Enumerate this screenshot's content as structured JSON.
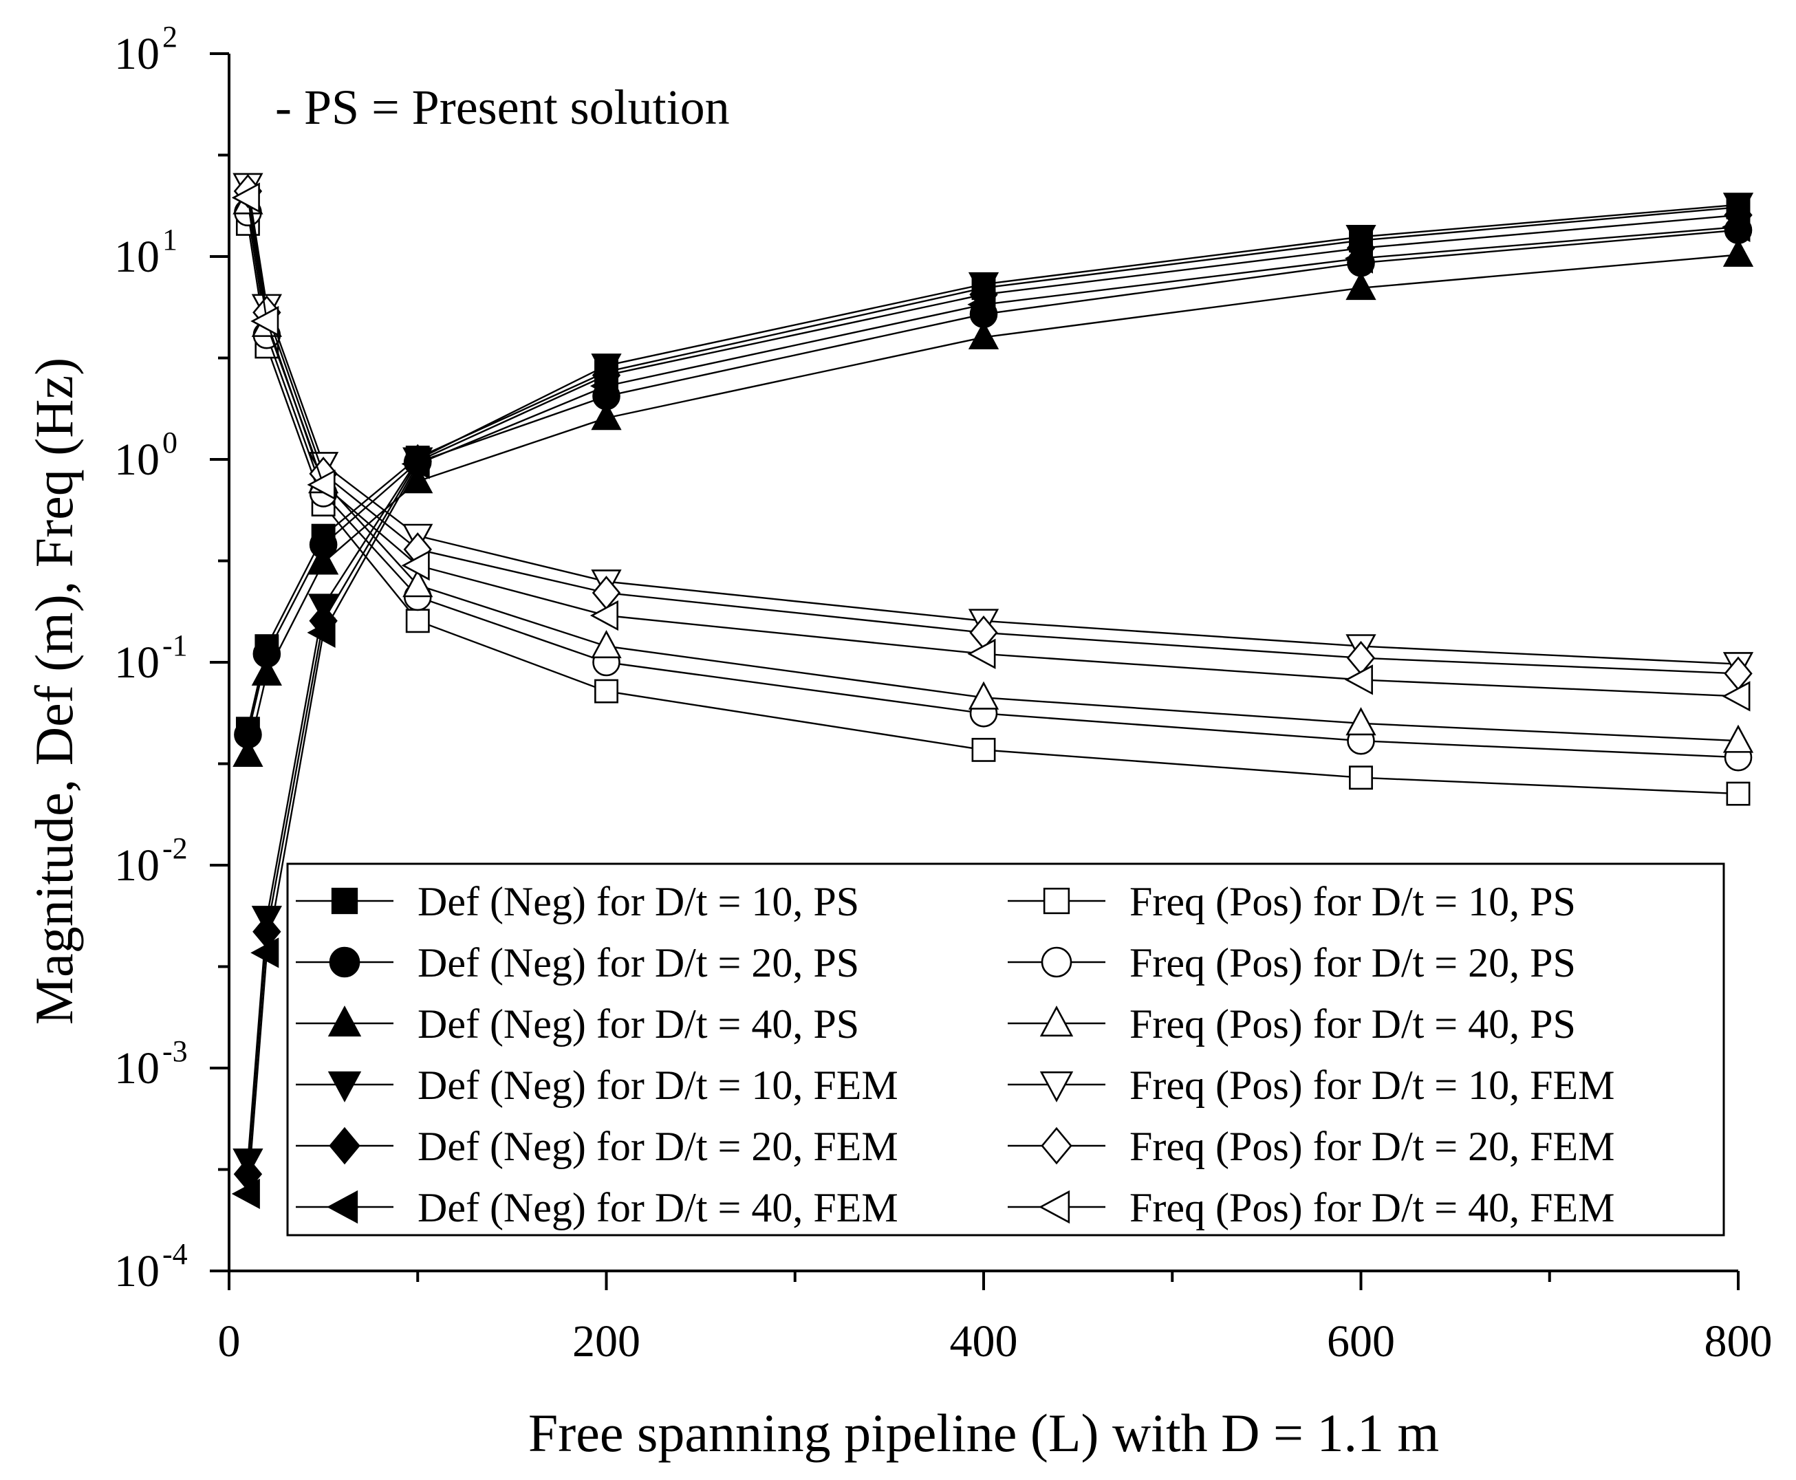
{
  "chart_data": {
    "type": "line",
    "title": "",
    "annotation": "- PS = Present solution",
    "xlabel": "Free spanning pipeline (L) with D = 1.1 m",
    "ylabel": "Magnitude, Def (m), Freq (Hz)",
    "xlim": [
      0,
      800
    ],
    "ylim": [
      0.0001,
      100
    ],
    "yscale": "log",
    "x_ticks": [
      "0",
      "200",
      "400",
      "600",
      "800"
    ],
    "y_ticks": [
      {
        "base": "10",
        "exp": "2"
      },
      {
        "base": "10",
        "exp": "1"
      },
      {
        "base": "10",
        "exp": "0"
      },
      {
        "base": "10",
        "exp": "-1"
      },
      {
        "base": "10",
        "exp": "-2"
      },
      {
        "base": "10",
        "exp": "-3"
      },
      {
        "base": "10",
        "exp": "-4"
      }
    ],
    "x": [
      10,
      20,
      50,
      100,
      200,
      400,
      600,
      800
    ],
    "legend_position": "bottom-center",
    "series": [
      {
        "name": "Def (Neg) for D/t = 10, PS",
        "marker": "square",
        "filled": true,
        "values": [
          0.047,
          0.12,
          0.42,
          1.02,
          2.7,
          7.0,
          12.0,
          17.5
        ]
      },
      {
        "name": "Def (Neg) for D/t = 20, PS",
        "marker": "circle",
        "filled": true,
        "values": [
          0.044,
          0.11,
          0.38,
          0.97,
          2.05,
          5.2,
          9.3,
          13.5
        ]
      },
      {
        "name": "Def (Neg) for D/t = 40, PS",
        "marker": "triangle-up",
        "filled": true,
        "values": [
          0.035,
          0.088,
          0.31,
          0.78,
          1.6,
          4.0,
          7.0,
          10.2
        ]
      },
      {
        "name": "Def (Neg) for D/t = 10, FEM",
        "marker": "triangle-down",
        "filled": true,
        "values": [
          0.00035,
          0.0055,
          0.19,
          1.0,
          2.9,
          7.3,
          12.5,
          18.0
        ]
      },
      {
        "name": "Def (Neg) for D/t = 20, FEM",
        "marker": "diamond",
        "filled": true,
        "values": [
          0.0003,
          0.0047,
          0.16,
          0.98,
          2.6,
          6.5,
          11.0,
          16.0
        ]
      },
      {
        "name": "Def (Neg) for D/t = 40, FEM",
        "marker": "triangle-left",
        "filled": true,
        "values": [
          0.00024,
          0.0037,
          0.14,
          0.95,
          2.3,
          5.8,
          9.8,
          14.0
        ]
      },
      {
        "name": "Freq (Pos) for D/t = 10, PS",
        "marker": "square",
        "filled": false,
        "values": [
          14.5,
          3.6,
          0.6,
          0.16,
          0.072,
          0.037,
          0.027,
          0.0225
        ]
      },
      {
        "name": "Freq (Pos) for D/t = 20, PS",
        "marker": "circle",
        "filled": false,
        "values": [
          16.5,
          4.1,
          0.68,
          0.21,
          0.1,
          0.056,
          0.041,
          0.034
        ]
      },
      {
        "name": "Freq (Pos) for D/t = 40, PS",
        "marker": "triangle-up",
        "filled": false,
        "values": [
          18.5,
          4.6,
          0.78,
          0.24,
          0.12,
          0.067,
          0.05,
          0.041
        ]
      },
      {
        "name": "Freq (Pos) for D/t = 10, FEM",
        "marker": "triangle-down",
        "filled": false,
        "values": [
          22.5,
          5.7,
          0.95,
          0.42,
          0.25,
          0.16,
          0.12,
          0.098
        ]
      },
      {
        "name": "Freq (Pos) for D/t = 20, FEM",
        "marker": "diamond",
        "filled": false,
        "values": [
          21.0,
          5.3,
          0.85,
          0.36,
          0.22,
          0.14,
          0.105,
          0.088
        ]
      },
      {
        "name": "Freq (Pos) for D/t = 40, FEM",
        "marker": "triangle-left",
        "filled": false,
        "values": [
          19.5,
          4.8,
          0.75,
          0.3,
          0.17,
          0.11,
          0.082,
          0.068
        ]
      }
    ]
  }
}
